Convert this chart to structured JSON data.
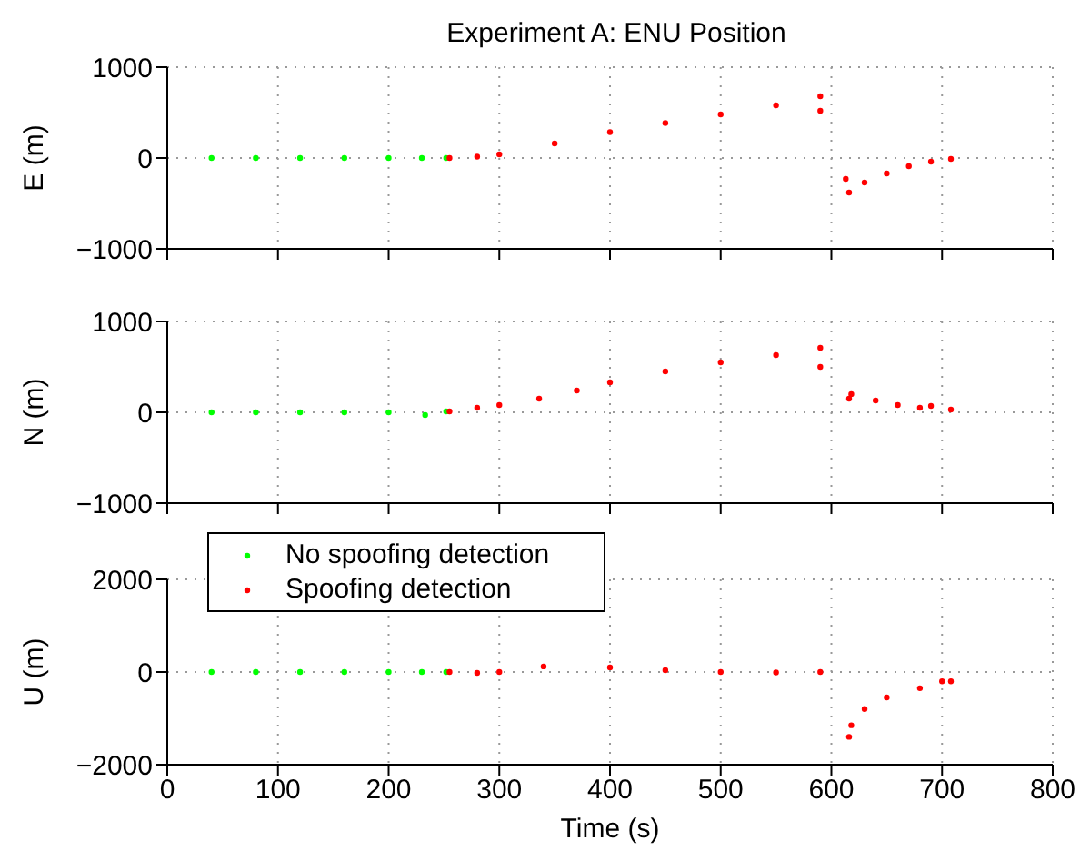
{
  "chart_data": [
    {
      "type": "scatter",
      "title": "Experiment A: ENU Position",
      "ylabel": "E (m)",
      "xlim": [
        0,
        800
      ],
      "xticks": [
        0,
        100,
        200,
        300,
        400,
        500,
        600,
        700,
        800
      ],
      "ylim": [
        -1000,
        1000
      ],
      "yticks": [
        -1000,
        0,
        1000
      ],
      "grid": true,
      "marker": "circle",
      "tick_labels": "y",
      "series": [
        {
          "color": "#00ff00",
          "x": [
            40,
            80,
            120,
            160,
            200,
            230,
            252
          ],
          "values": [
            0,
            0,
            0,
            0,
            0,
            0,
            0
          ]
        },
        {
          "color": "#ff0000",
          "x": [
            255,
            280,
            300,
            350,
            400,
            450,
            500,
            550,
            590,
            590,
            613,
            616,
            630,
            650,
            670,
            690,
            708
          ],
          "values": [
            0,
            15,
            40,
            160,
            285,
            385,
            480,
            580,
            680,
            520,
            -230,
            -380,
            -270,
            -170,
            -90,
            -40,
            -10
          ]
        }
      ]
    },
    {
      "type": "scatter",
      "ylabel": "N (m)",
      "xlim": [
        0,
        800
      ],
      "xticks": [
        0,
        100,
        200,
        300,
        400,
        500,
        600,
        700,
        800
      ],
      "ylim": [
        -1000,
        1000
      ],
      "yticks": [
        -1000,
        0,
        1000
      ],
      "grid": true,
      "marker": "circle",
      "tick_labels": "y",
      "series": [
        {
          "color": "#00ff00",
          "x": [
            40,
            80,
            120,
            160,
            200,
            233,
            252
          ],
          "values": [
            0,
            0,
            0,
            0,
            0,
            -30,
            10
          ]
        },
        {
          "color": "#ff0000",
          "x": [
            255,
            280,
            300,
            336,
            370,
            400,
            450,
            500,
            550,
            590,
            590,
            616,
            618,
            640,
            660,
            680,
            690,
            708
          ],
          "values": [
            10,
            50,
            80,
            150,
            240,
            330,
            450,
            550,
            630,
            710,
            500,
            150,
            200,
            130,
            80,
            50,
            70,
            30
          ]
        }
      ]
    },
    {
      "type": "scatter",
      "ylabel": "U (m)",
      "xlabel": "Time (s)",
      "xlim": [
        0,
        800
      ],
      "xticks": [
        0,
        100,
        200,
        300,
        400,
        500,
        600,
        700,
        800
      ],
      "ylim": [
        -2000,
        2000
      ],
      "yticks": [
        -2000,
        0,
        2000
      ],
      "grid": true,
      "marker": "circle",
      "legend": "top left",
      "series": [
        {
          "name": "No spoofing detection",
          "color": "#00ff00",
          "x": [
            40,
            80,
            120,
            160,
            200,
            230,
            252
          ],
          "values": [
            0,
            0,
            0,
            0,
            0,
            0,
            0
          ]
        },
        {
          "name": "Spoofing detection",
          "color": "#ff0000",
          "x": [
            255,
            280,
            300,
            340,
            400,
            450,
            500,
            550,
            590,
            616,
            618,
            630,
            650,
            680,
            700,
            708
          ],
          "values": [
            0,
            -20,
            0,
            120,
            100,
            40,
            0,
            -10,
            0,
            -1400,
            -1150,
            -800,
            -550,
            -350,
            -200,
            -200
          ]
        }
      ]
    }
  ]
}
